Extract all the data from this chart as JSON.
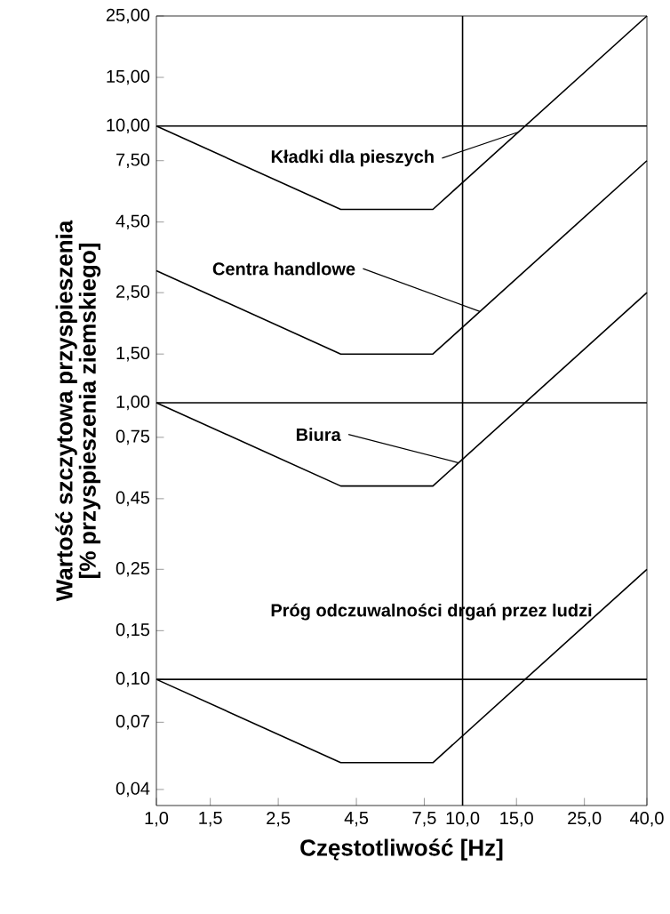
{
  "chart_data": {
    "type": "line",
    "xlabel": "Częstotliwość [Hz]",
    "ylabel": "Wartość szczytowa przyspieszenia [% przyspieszenia ziemskiego]",
    "log": "xy",
    "marker": "none",
    "line_style": "solid",
    "grid": false,
    "legend": false,
    "xlim": [
      1,
      40
    ],
    "ylim": [
      0.035,
      25
    ],
    "xticks": [
      {
        "value": 1,
        "label": "1,0"
      },
      {
        "value": 1.5,
        "label": "1,5"
      },
      {
        "value": 2.5,
        "label": "2,5"
      },
      {
        "value": 4.5,
        "label": "4,5"
      },
      {
        "value": 7.5,
        "label": "7,5"
      },
      {
        "value": 10,
        "label": "10,0"
      },
      {
        "value": 15,
        "label": "15,0"
      },
      {
        "value": 25,
        "label": "25,0"
      },
      {
        "value": 40,
        "label": "40,0"
      }
    ],
    "yticks": [
      {
        "value": 0.04,
        "label": "0,04"
      },
      {
        "value": 0.07,
        "label": "0,07"
      },
      {
        "value": 0.1,
        "label": "0,10"
      },
      {
        "value": 0.15,
        "label": "0,15"
      },
      {
        "value": 0.25,
        "label": "0,25"
      },
      {
        "value": 0.45,
        "label": "0,45"
      },
      {
        "value": 0.75,
        "label": "0,75"
      },
      {
        "value": 1,
        "label": "1,00"
      },
      {
        "value": 1.5,
        "label": "1,50"
      },
      {
        "value": 2.5,
        "label": "2,50"
      },
      {
        "value": 4.5,
        "label": "4,50"
      },
      {
        "value": 7.5,
        "label": "7,50"
      },
      {
        "value": 10,
        "label": "10,00"
      },
      {
        "value": 15,
        "label": "15,00"
      },
      {
        "value": 25,
        "label": "25,00"
      }
    ],
    "x": [
      1,
      4,
      8,
      40
    ],
    "series": [
      {
        "name": "Kładki dla pieszych",
        "color": "#000000",
        "values": [
          10,
          5,
          5,
          25
        ]
      },
      {
        "name": "Centra handlowe",
        "color": "#000000",
        "values": [
          3,
          1.5,
          1.5,
          7.5
        ]
      },
      {
        "name": "Biura",
        "color": "#000000",
        "values": [
          1,
          0.5,
          0.5,
          2.5
        ]
      },
      {
        "name": "Próg odczuwalności drgań przez ludzi",
        "color": "#000000",
        "values": [
          0.1,
          0.05,
          0.05,
          0.25
        ]
      }
    ],
    "ref_lines": [
      {
        "axis": "y",
        "value": 10,
        "color": "#000000"
      },
      {
        "axis": "y",
        "value": 1,
        "color": "#000000"
      },
      {
        "axis": "y",
        "value": 0.1,
        "color": "#000000"
      },
      {
        "axis": "x",
        "value": 10,
        "color": "#000000"
      }
    ]
  }
}
